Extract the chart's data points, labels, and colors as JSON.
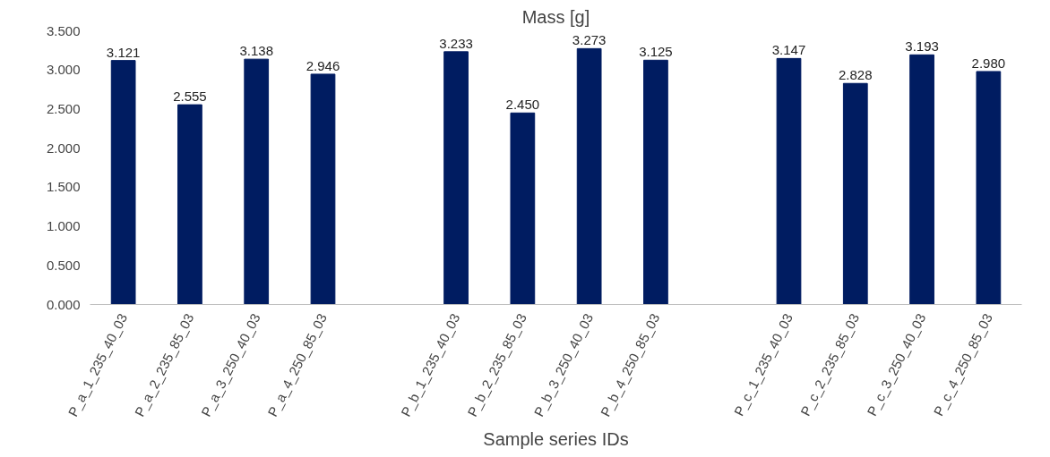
{
  "chart_data": {
    "type": "bar",
    "title": "Mass [g]",
    "xlabel": "Sample series IDs",
    "categories": [
      "P_a_1_235_40_03",
      "P_a_2_235_85_03",
      "P_a_3_250_40_03",
      "P_a_4_250_85_03",
      null,
      "P_b_1_235_40_03",
      "P_b_2_235_85_03",
      "P_b_3_250_40_03",
      "P_b_4_250_85_03",
      null,
      "P_c_1_235_40_03",
      "P_c_2_235_85_03",
      "P_c_3_250_40_03",
      "P_c_4_250_85_03"
    ],
    "values": [
      3.121,
      2.555,
      3.138,
      2.946,
      null,
      3.233,
      2.45,
      3.273,
      3.125,
      null,
      3.147,
      2.828,
      3.193,
      2.98
    ],
    "value_labels": [
      "3.121",
      "2.555",
      "3.138",
      "2.946",
      null,
      "3.233",
      "2.450",
      "3.273",
      "3.125",
      null,
      "3.147",
      "2.828",
      "3.193",
      "2.980"
    ],
    "color": "#001c61",
    "ylim": [
      0,
      3.5
    ],
    "yticks": [
      {
        "value": 0,
        "label": "0.000"
      },
      {
        "value": 0.5,
        "label": "0.500"
      },
      {
        "value": 1,
        "label": "1.000"
      },
      {
        "value": 1.5,
        "label": "1.500"
      },
      {
        "value": 2,
        "label": "2.000"
      },
      {
        "value": 2.5,
        "label": "2.500"
      },
      {
        "value": 3,
        "label": "3.000"
      },
      {
        "value": 3.5,
        "label": "3.500"
      }
    ],
    "grid": false
  }
}
